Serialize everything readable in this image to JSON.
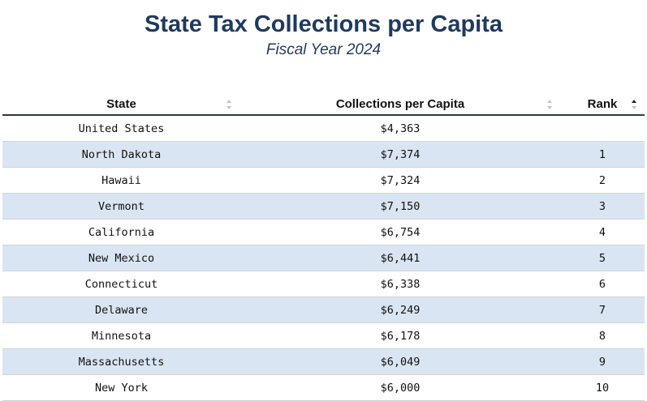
{
  "title": "State Tax Collections per Capita",
  "subtitle": "Fiscal Year 2024",
  "columns": [
    {
      "label": "State"
    },
    {
      "label": "Collections per Capita"
    },
    {
      "label": "Rank"
    }
  ],
  "rows": [
    {
      "state": "United States",
      "collections": "$4,363",
      "rank": ""
    },
    {
      "state": "North Dakota",
      "collections": "$7,374",
      "rank": "1"
    },
    {
      "state": "Hawaii",
      "collections": "$7,324",
      "rank": "2"
    },
    {
      "state": "Vermont",
      "collections": "$7,150",
      "rank": "3"
    },
    {
      "state": "California",
      "collections": "$6,754",
      "rank": "4"
    },
    {
      "state": "New Mexico",
      "collections": "$6,441",
      "rank": "5"
    },
    {
      "state": "Connecticut",
      "collections": "$6,338",
      "rank": "6"
    },
    {
      "state": "Delaware",
      "collections": "$6,249",
      "rank": "7"
    },
    {
      "state": "Minnesota",
      "collections": "$6,178",
      "rank": "8"
    },
    {
      "state": "Massachusetts",
      "collections": "$6,049",
      "rank": "9"
    },
    {
      "state": "New York",
      "collections": "$6,000",
      "rank": "10"
    }
  ],
  "sort": {
    "column": "Rank",
    "direction": "ascending"
  },
  "colors": {
    "title": "#1f3a5f",
    "stripe": "#d9e5f2",
    "header_rule": "#2b3a4a"
  }
}
